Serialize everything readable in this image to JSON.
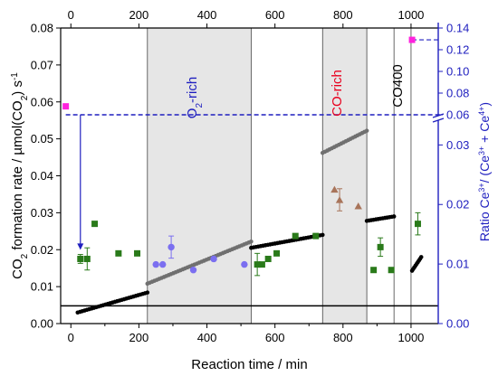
{
  "chart_data": {
    "type": "scatter",
    "xlabel": "Reaction time / min",
    "ylabel_main": "CO2 formation rate / µmol(CO2) s⁻¹",
    "ylabel_right": "Ratio Ce³⁺/ (Ce³⁺ + Ce⁴⁺)",
    "xlim": [
      -30,
      1080
    ],
    "ylim": [
      0,
      0.08
    ],
    "x_ticks": [
      0,
      200,
      400,
      600,
      800,
      1000
    ],
    "y_ticks": [
      0.0,
      0.01,
      0.02,
      0.03,
      0.04,
      0.05,
      0.06,
      0.07,
      0.08
    ],
    "right_axis": {
      "lower_ticks": [
        0.0,
        0.01,
        0.02,
        0.03
      ],
      "upper_ticks": [
        0.06,
        0.08,
        0.1,
        0.12,
        0.14
      ],
      "lower_range": [
        0,
        0.034
      ],
      "upper_range": [
        0.06,
        0.145
      ],
      "break": true
    },
    "regions": [
      {
        "label": "O2-rich",
        "x_start": 225,
        "x_end": 530,
        "color": "#e6e6e6",
        "label_color": "#1f1fbf"
      },
      {
        "label": "CO-rich",
        "x_start": 740,
        "x_end": 870,
        "color": "#e6e6e6",
        "label_color": "#e8001e"
      },
      {
        "label": "CO400",
        "x_start": 950,
        "x_end": 1000,
        "color": "#ffffff",
        "label_color": "#000000"
      }
    ],
    "baseline_y": 0.0048,
    "dashed_reference": {
      "right_value": 0.06,
      "color": "#1f1fbf"
    },
    "series": [
      {
        "kind": "black",
        "color": "#000000",
        "segments": [
          {
            "x0": 20,
            "x1": 225,
            "y0": 0.003,
            "y1": 0.0084
          },
          {
            "x0": 530,
            "x1": 740,
            "y0": 0.0205,
            "y1": 0.024
          },
          {
            "x0": 870,
            "x1": 950,
            "y0": 0.0278,
            "y1": 0.029
          },
          {
            "x0": 1003,
            "x1": 1030,
            "y0": 0.0143,
            "y1": 0.018
          }
        ]
      },
      {
        "kind": "grey",
        "color": "#707070",
        "segments": [
          {
            "x0": 225,
            "x1": 530,
            "y0": 0.0108,
            "y1": 0.0222
          },
          {
            "x0": 740,
            "x1": 870,
            "y0": 0.0462,
            "y1": 0.0522
          }
        ]
      },
      {
        "kind": "green-squares",
        "color": "#2a7a1a",
        "points": [
          {
            "x": 28,
            "y": 0.0175,
            "err": 0.0012
          },
          {
            "x": 48,
            "y": 0.0175,
            "err": 0.003
          },
          {
            "x": 70,
            "y": 0.027,
            "err": 0
          },
          {
            "x": 140,
            "y": 0.019,
            "err": 0
          },
          {
            "x": 195,
            "y": 0.019,
            "err": 0
          },
          {
            "x": 548,
            "y": 0.016,
            "err": 0.003
          },
          {
            "x": 562,
            "y": 0.016,
            "err": 0
          },
          {
            "x": 580,
            "y": 0.0175,
            "err": 0
          },
          {
            "x": 605,
            "y": 0.019,
            "err": 0
          },
          {
            "x": 660,
            "y": 0.0237,
            "err": 0
          },
          {
            "x": 720,
            "y": 0.0237,
            "err": 0
          },
          {
            "x": 890,
            "y": 0.0145,
            "err": 0
          },
          {
            "x": 910,
            "y": 0.0207,
            "err": 0.0025
          },
          {
            "x": 942,
            "y": 0.0145,
            "err": 0
          },
          {
            "x": 1020,
            "y": 0.027,
            "err": 0.003
          }
        ]
      },
      {
        "kind": "blue-circles",
        "color": "#7b6ff0",
        "points": [
          {
            "x": 250,
            "y": 0.016,
            "err": 0
          },
          {
            "x": 270,
            "y": 0.016,
            "err": 0
          },
          {
            "x": 295,
            "y": 0.0207,
            "err": 0.003
          },
          {
            "x": 360,
            "y": 0.0145,
            "err": 0
          },
          {
            "x": 420,
            "y": 0.0175,
            "err": 0
          },
          {
            "x": 510,
            "y": 0.016,
            "err": 0
          }
        ]
      },
      {
        "kind": "brown-triangles",
        "color": "#a8745a",
        "points": [
          {
            "x": 775,
            "y": 0.0363,
            "err": 0
          },
          {
            "x": 790,
            "y": 0.0335,
            "err": 0.003
          },
          {
            "x": 845,
            "y": 0.0318,
            "err": 0
          }
        ]
      },
      {
        "kind": "magenta-squares",
        "color": "#ff22dd",
        "points": [
          {
            "x": -15,
            "y": 0.0588,
            "err": 0
          },
          {
            "x": 1003,
            "y": 0.0768,
            "err": 0
          }
        ]
      }
    ]
  }
}
